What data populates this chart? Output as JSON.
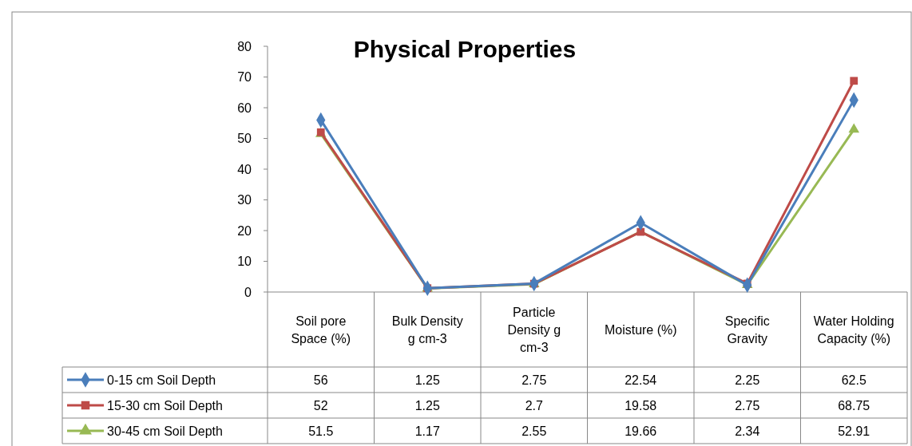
{
  "chart_data": {
    "type": "line",
    "title": "Physical Properties",
    "categories": [
      "Soil pore Space (%)",
      "Bulk Density g cm-3",
      "Particle Density g cm-3",
      "Moisture (%)",
      "Specific Gravity",
      "Water Holding Capacity (%)"
    ],
    "series": [
      {
        "name": "0-15 cm  Soil Depth",
        "color": "#4a7ebb",
        "marker": "diamond",
        "values": [
          56,
          1.25,
          2.75,
          22.54,
          2.25,
          62.5
        ]
      },
      {
        "name": "15-30 cm Soil Depth",
        "color": "#be4b48",
        "marker": "square",
        "values": [
          52,
          1.25,
          2.7,
          19.58,
          2.75,
          68.75
        ]
      },
      {
        "name": "30-45 cm Soil Depth",
        "color": "#98b954",
        "marker": "triangle",
        "values": [
          51.5,
          1.17,
          2.55,
          19.66,
          2.34,
          52.91
        ]
      }
    ],
    "ylim": [
      0,
      80
    ],
    "yticks": [
      0,
      10,
      20,
      30,
      40,
      50,
      60,
      70,
      80
    ],
    "grid": false,
    "legend": "bottom left",
    "line_style": "solid",
    "data_labels": true
  }
}
